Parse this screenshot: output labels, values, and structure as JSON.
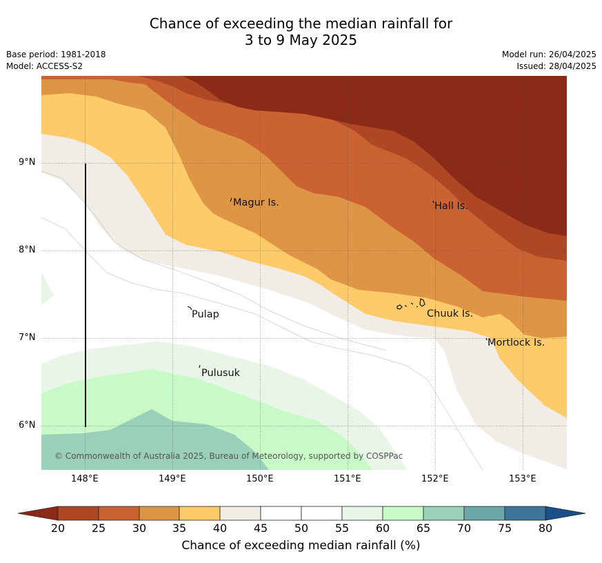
{
  "title": {
    "line1": "Chance of exceeding the median rainfall for",
    "line2": "3 to 9 May 2025"
  },
  "meta": {
    "base_period": "Base period: 1981-2018",
    "model": "Model: ACCESS-S2",
    "model_run": "Model run: 26/04/2025",
    "issued": "Issued: 28/04/2025"
  },
  "map": {
    "lon_range": [
      147.5,
      153.5
    ],
    "lat_range": [
      5.5,
      10.0
    ],
    "lon_ticks": [
      "148°E",
      "149°E",
      "150°E",
      "151°E",
      "152°E",
      "153°E"
    ],
    "lat_ticks": [
      "9°N",
      "8°N",
      "7°N",
      "6°N"
    ],
    "places": [
      {
        "name": "Magur Is."
      },
      {
        "name": "Hall Is."
      },
      {
        "name": "Pulap"
      },
      {
        "name": "Chuuk Is."
      },
      {
        "name": "Mortlock Is."
      },
      {
        "name": "Pulusuk"
      }
    ],
    "credit": "© Commonwealth of Australia 2025, Bureau of Meteorology, supported by COSPPac"
  },
  "colorbar": {
    "title": "Chance of exceeding median rainfall (%)",
    "labels": [
      "20",
      "25",
      "30",
      "35",
      "40",
      "45",
      "50",
      "55",
      "60",
      "65",
      "70",
      "75",
      "80"
    ],
    "colors": {
      "below_20": "#8B2A17",
      "20-25": "#AE4824",
      "25-30": "#CB6232",
      "30-35": "#DF9546",
      "35-40": "#FDCB6A",
      "40-45": "#F1ECE5",
      "45-50": "#FFFFFF",
      "50-55": "#FFFFFF",
      "55-60": "#E9F5E9",
      "60-65": "#C8FAC8",
      "65-70": "#9ACFB8",
      "70-75": "#6CA6A8",
      "75-80": "#3E7599",
      "above_80": "#1A4F8A"
    }
  }
}
